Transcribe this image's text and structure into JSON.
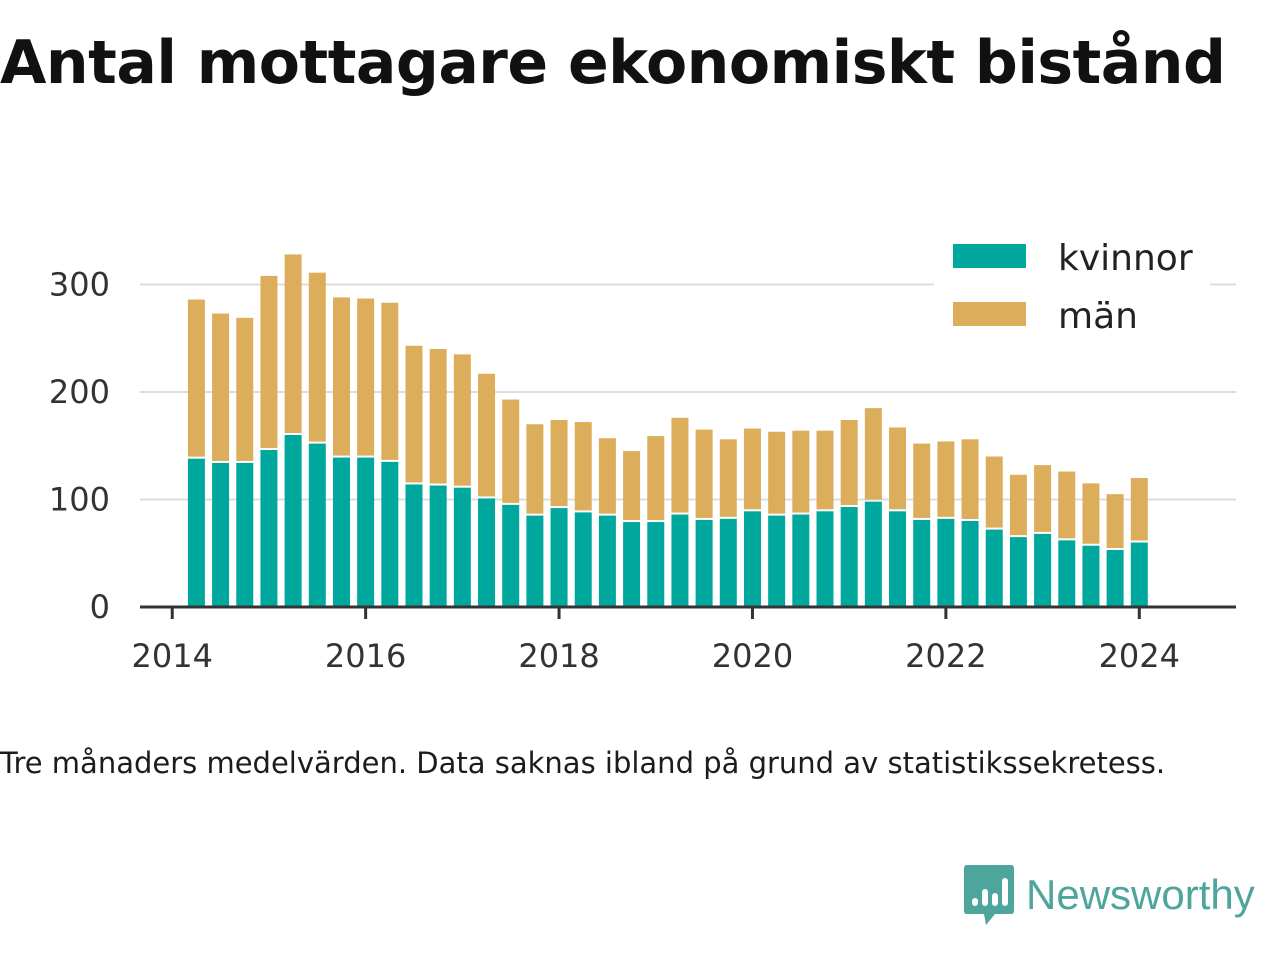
{
  "title": "Antal mottagare ekonomiskt bistånd",
  "caption": "Tre månaders medelvärden. Data saknas ibland på grund av statistikssekretess.",
  "brand": {
    "name": "Newsworthy",
    "logo_icon": "newsworthy-logo-icon"
  },
  "colors": {
    "kvinnor": "#00a79d",
    "man": "#dcae5c",
    "grid": "#dddddd",
    "axis": "#333333",
    "brand": "#4da59b"
  },
  "chart_data": {
    "type": "bar",
    "stacked": true,
    "x_ticks": [
      "2014",
      "2016",
      "2018",
      "2020",
      "2022",
      "2024"
    ],
    "y_ticks": [
      "0",
      "100",
      "200",
      "300"
    ],
    "xlim": [
      "2013-09",
      "2025-01"
    ],
    "ylim": [
      0,
      330
    ],
    "legend_position": "top-right",
    "grid": true,
    "x": [
      "2014-04",
      "2014-07",
      "2014-10",
      "2015-01",
      "2015-04",
      "2015-07",
      "2015-10",
      "2016-01",
      "2016-04",
      "2016-07",
      "2016-10",
      "2017-01",
      "2017-04",
      "2017-07",
      "2017-10",
      "2018-01",
      "2018-04",
      "2018-07",
      "2018-10",
      "2019-01",
      "2019-04",
      "2019-07",
      "2019-10",
      "2020-01",
      "2020-04",
      "2020-07",
      "2020-10",
      "2021-01",
      "2021-04",
      "2021-07",
      "2021-10",
      "2022-01",
      "2022-04",
      "2022-07",
      "2022-10",
      "2023-01",
      "2023-04",
      "2023-07",
      "2023-10",
      "2024-01"
    ],
    "series": [
      {
        "name": "kvinnor",
        "color": "#00a79d",
        "values": [
          138,
          134,
          134,
          146,
          160,
          152,
          139,
          139,
          135,
          114,
          113,
          111,
          101,
          95,
          85,
          92,
          88,
          85,
          79,
          79,
          86,
          81,
          82,
          89,
          85,
          86,
          89,
          93,
          98,
          89,
          81,
          82,
          80,
          72,
          65,
          68,
          62,
          57,
          53,
          60
        ]
      },
      {
        "name": "män",
        "color": "#dcae5c",
        "values": [
          148,
          139,
          135,
          162,
          168,
          159,
          149,
          148,
          148,
          129,
          127,
          124,
          116,
          98,
          85,
          82,
          84,
          72,
          66,
          80,
          90,
          84,
          74,
          77,
          78,
          78,
          75,
          81,
          87,
          78,
          71,
          72,
          76,
          68,
          58,
          64,
          64,
          58,
          52,
          60
        ]
      }
    ]
  }
}
